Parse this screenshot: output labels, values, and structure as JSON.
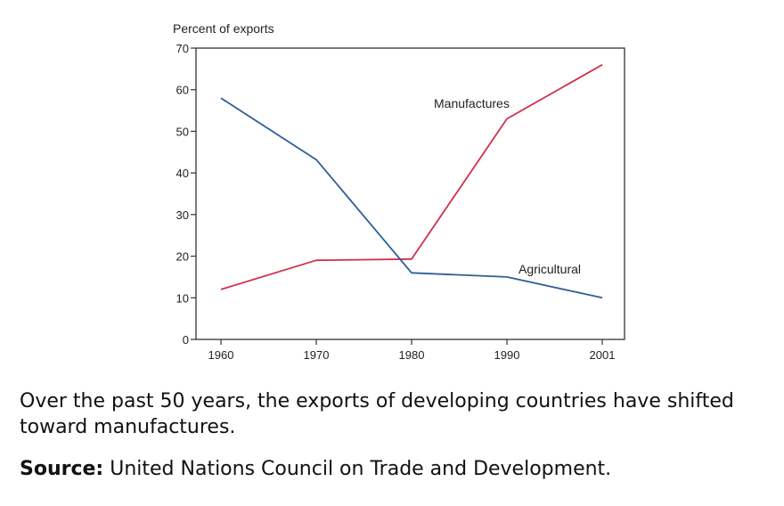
{
  "chart_data": {
    "type": "line",
    "title": "",
    "xlabel": "",
    "ylabel": "Percent of exports",
    "x": [
      "1960",
      "1970",
      "1980",
      "1990",
      "2001"
    ],
    "ylim": [
      0,
      70
    ],
    "yticks": [
      "0",
      "10",
      "20",
      "30",
      "40",
      "50",
      "60",
      "70"
    ],
    "grid": false,
    "series": [
      {
        "name": "Manufactures",
        "color": "#d1314a",
        "values": [
          12,
          19,
          19.3,
          53,
          66
        ]
      },
      {
        "name": "Agricultural",
        "color": "#2e5f95",
        "values": [
          58,
          43.2,
          16,
          15,
          10
        ]
      }
    ]
  },
  "caption": "Over the past 50 years, the exports of developing countries have shifted toward manufactures.",
  "source": {
    "label": "Source:",
    "text": " United Nations Council on Trade and Development."
  }
}
